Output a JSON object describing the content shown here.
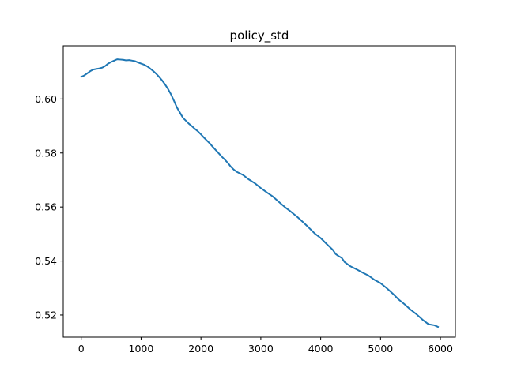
{
  "chart_data": {
    "type": "line",
    "title": "policy_std",
    "xlabel": "",
    "ylabel": "",
    "xlim": [
      -300,
      6250
    ],
    "ylim": [
      0.5118,
      0.6197
    ],
    "xticks": [
      0,
      1000,
      2000,
      3000,
      4000,
      5000,
      6000
    ],
    "xtick_labels": [
      "0",
      "1000",
      "2000",
      "3000",
      "4000",
      "5000",
      "6000"
    ],
    "yticks": [
      0.52,
      0.54,
      0.56,
      0.58,
      0.6
    ],
    "ytick_labels": [
      "0.52",
      "0.54",
      "0.56",
      "0.58",
      "0.60"
    ],
    "grid": false,
    "legend": "none",
    "colors": {
      "line": "#1f77b4",
      "axes": "#000000",
      "background": "#ffffff"
    },
    "series": [
      {
        "name": "",
        "x": [
          0,
          50,
          100,
          150,
          200,
          250,
          300,
          350,
          400,
          450,
          500,
          550,
          600,
          650,
          700,
          750,
          800,
          850,
          900,
          950,
          1000,
          1050,
          1100,
          1150,
          1200,
          1250,
          1300,
          1350,
          1400,
          1450,
          1500,
          1550,
          1600,
          1650,
          1700,
          1750,
          1800,
          1850,
          1900,
          1950,
          2000,
          2050,
          2100,
          2150,
          2200,
          2250,
          2300,
          2350,
          2400,
          2450,
          2500,
          2550,
          2600,
          2700,
          2800,
          2900,
          3000,
          3100,
          3200,
          3300,
          3400,
          3500,
          3600,
          3700,
          3800,
          3900,
          4000,
          4100,
          4200,
          4250,
          4300,
          4350,
          4400,
          4450,
          4500,
          4600,
          4700,
          4800,
          4900,
          4950,
          5000,
          5100,
          5200,
          5300,
          5400,
          5500,
          5600,
          5700,
          5800,
          5900,
          5960
        ],
        "y": [
          0.6082,
          0.6087,
          0.6095,
          0.6103,
          0.6109,
          0.6111,
          0.6113,
          0.6116,
          0.6122,
          0.6131,
          0.6137,
          0.6142,
          0.6147,
          0.6146,
          0.6145,
          0.6143,
          0.6144,
          0.6142,
          0.614,
          0.6135,
          0.6131,
          0.6127,
          0.6121,
          0.6113,
          0.6104,
          0.6094,
          0.6082,
          0.6069,
          0.6054,
          0.6037,
          0.6017,
          0.5993,
          0.5968,
          0.5949,
          0.593,
          0.5919,
          0.5908,
          0.5899,
          0.5889,
          0.588,
          0.5869,
          0.5857,
          0.5846,
          0.5835,
          0.5822,
          0.581,
          0.5798,
          0.5786,
          0.5775,
          0.5763,
          0.5749,
          0.5738,
          0.573,
          0.5719,
          0.5702,
          0.5688,
          0.567,
          0.5654,
          0.5639,
          0.5619,
          0.56,
          0.5583,
          0.5565,
          0.5545,
          0.5524,
          0.5502,
          0.5485,
          0.5463,
          0.5442,
          0.5426,
          0.5418,
          0.5412,
          0.5396,
          0.5388,
          0.538,
          0.5369,
          0.5357,
          0.5346,
          0.533,
          0.5324,
          0.5318,
          0.53,
          0.528,
          0.5258,
          0.524,
          0.522,
          0.5203,
          0.5183,
          0.5166,
          0.5162,
          0.5156
        ]
      }
    ]
  }
}
